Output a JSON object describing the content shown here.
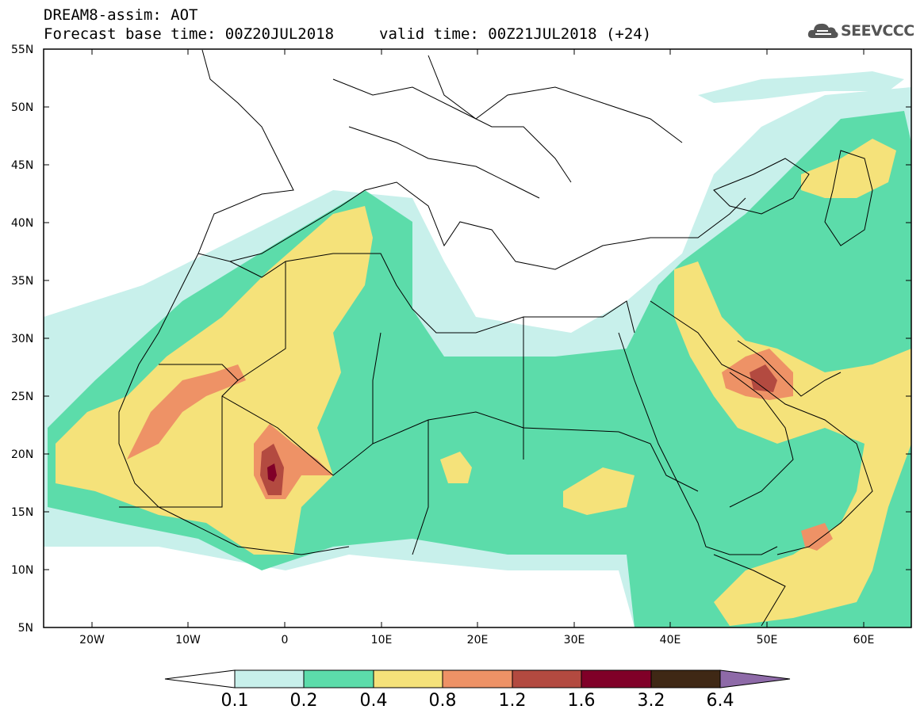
{
  "title_line1": "DREAM8-assim: AOT",
  "title_line2": "Forecast base time: 00Z20JUL2018",
  "valid_time": "valid time: 00Z21JUL2018 (+24)",
  "logo": {
    "text": "SEEVCCC",
    "icon": "cloud-icon"
  },
  "lat_labels": [
    "55N",
    "50N",
    "45N",
    "40N",
    "35N",
    "30N",
    "25N",
    "20N",
    "15N",
    "10N",
    "5N"
  ],
  "lon_labels": [
    "20W",
    "10W",
    "0",
    "10E",
    "20E",
    "30E",
    "40E",
    "50E",
    "60E"
  ],
  "colorbar": {
    "labels": [
      "0.1",
      "0.2",
      "0.4",
      "0.8",
      "1.2",
      "1.6",
      "3.2",
      "6.4"
    ],
    "colors": [
      "#c8f0eb",
      "#5cdcaa",
      "#f5e27a",
      "#ee9266",
      "#b34a40",
      "#800028",
      "#3f2815",
      "#8e6aa8"
    ],
    "under_color": "#ffffff"
  },
  "map": {
    "lat_range": [
      5,
      55
    ],
    "lon_range": [
      -25,
      65
    ],
    "variable": "Aerosol optical thickness (AOT)"
  }
}
